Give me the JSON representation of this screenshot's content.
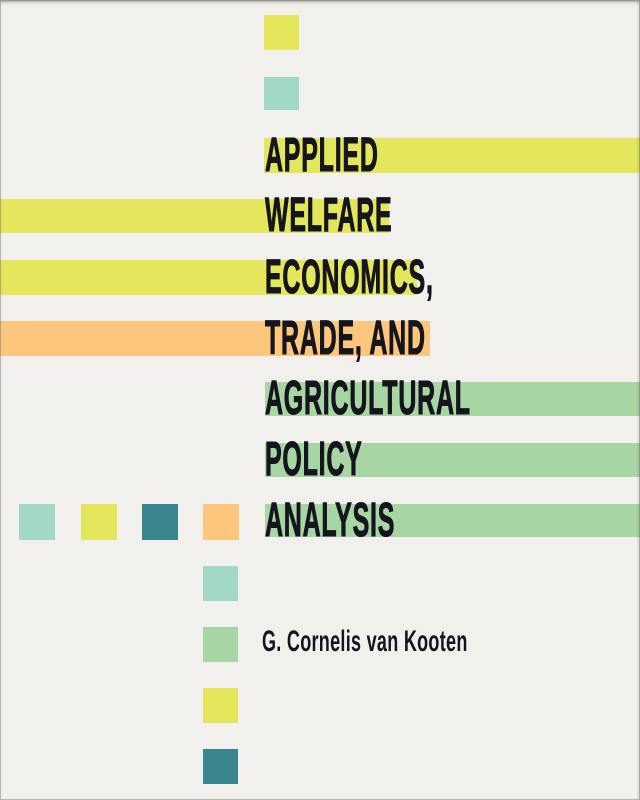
{
  "cover": {
    "background_color": "#f1f0ec",
    "title_color": "#15151d",
    "author_color": "#15151d",
    "title_lines": [
      {
        "text": "APPLIED",
        "bar_color": "#e4e75c",
        "bar_direction": "right"
      },
      {
        "text": "WELFARE",
        "bar_color": "#e4e75c",
        "bar_direction": "left"
      },
      {
        "text": "ECONOMICS,",
        "bar_color": "#e4e75c",
        "bar_direction": "left"
      },
      {
        "text": "TRADE, AND",
        "bar_color": "#fcc77d",
        "bar_direction": "left"
      },
      {
        "text": "AGRICULTURAL",
        "bar_color": "#a7d5a3",
        "bar_direction": "right"
      },
      {
        "text": "POLICY",
        "bar_color": "#a7d5a3",
        "bar_direction": "right"
      },
      {
        "text": "ANALYSIS",
        "bar_color": "#a7d5a3",
        "bar_direction": "right"
      }
    ],
    "author": "G. Cornelis van Kooten",
    "palette": {
      "yellow": "#e4e75c",
      "orange": "#fcc77d",
      "green": "#a7d5a3",
      "mint": "#a1d9c5",
      "teal": "#3a868f"
    },
    "decor_squares": [
      {
        "position": "top-1",
        "color": "#e4e75c"
      },
      {
        "position": "top-2",
        "color": "#a1d9c5"
      },
      {
        "position": "row-1",
        "color": "#a1d9c5"
      },
      {
        "position": "row-2",
        "color": "#e4e75c"
      },
      {
        "position": "row-3",
        "color": "#3a868f"
      },
      {
        "position": "row-4",
        "color": "#fcc77d"
      },
      {
        "position": "column-1",
        "color": "#a1d9c5"
      },
      {
        "position": "column-2",
        "color": "#a7d5a3"
      },
      {
        "position": "column-3",
        "color": "#e4e75c"
      },
      {
        "position": "column-4",
        "color": "#3a868f"
      }
    ]
  }
}
